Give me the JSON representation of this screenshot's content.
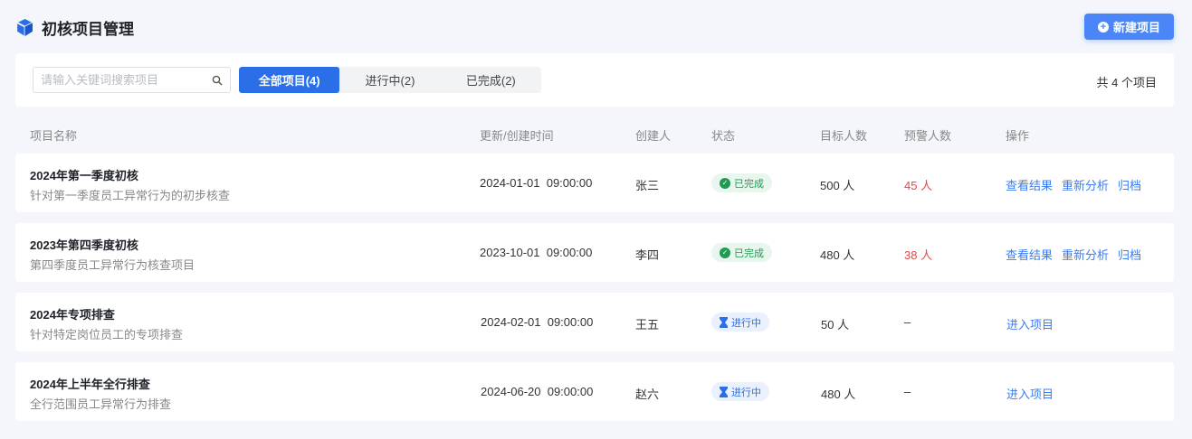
{
  "header": {
    "title": "初核项目管理",
    "new_button": "新建项目",
    "icon": "cube-icon"
  },
  "filter": {
    "search_placeholder": "请输入关键词搜索项目",
    "search_value": "",
    "tabs": [
      {
        "label": "全部项目(4)",
        "active": true
      },
      {
        "label": "进行中(2)"
      },
      {
        "label": "已完成(2)"
      }
    ],
    "total": "共 4 个项目"
  },
  "columns": [
    "项目名称",
    "更新/创建时间",
    "创建人",
    "状态",
    "目标人数",
    "预警人数",
    "操作"
  ],
  "rows": [
    {
      "name": "2024年第一季度初核",
      "desc": "针对第一季度员工异常行为的初步核查",
      "time": "2024-01-01  09:00:00",
      "creator": "张三",
      "status": "已完成",
      "target": "500 人",
      "warning": "45 人",
      "actions": [
        "查看结果",
        "重新分析",
        "归档"
      ]
    },
    {
      "name": "2023年第四季度初核",
      "desc": "第四季度员工异常行为核查项目",
      "time": "2023-10-01  09:00:00",
      "creator": "李四",
      "status": "已完成",
      "target": "480 人",
      "warning": "38 人",
      "actions": [
        "查看结果",
        "重新分析",
        "归档"
      ]
    },
    {
      "name": "2024年专项排查",
      "desc": "针对特定岗位员工的专项排查",
      "time": "2024-02-01  09:00:00",
      "creator": "王五",
      "status": "进行中",
      "target": "50 人",
      "warning": "–",
      "actions": [
        "进入项目"
      ]
    },
    {
      "name": "2024年上半年全行排查",
      "desc": "全行范围员工异常行为排查",
      "time": "2024-06-20  09:00:00",
      "creator": "赵六",
      "status": "进行中",
      "target": "480 人",
      "warning": "–",
      "actions": [
        "进入项目"
      ]
    }
  ],
  "colors": {
    "primary": "#2b6fe8",
    "done": "#1f9a52",
    "warning": "#e5484d",
    "link": "#3b7cf0"
  }
}
